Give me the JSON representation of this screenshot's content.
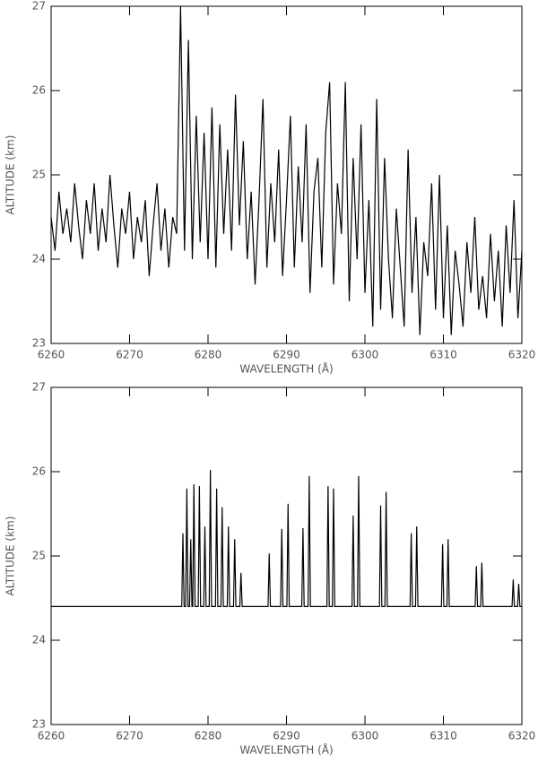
{
  "chart_data": [
    {
      "type": "line",
      "xlabel": "WAVELENGTH (Å)",
      "ylabel": "ALTITUDE (km)",
      "color": "#000000",
      "xlim": [
        6260,
        6320
      ],
      "xticks": [
        6260,
        6270,
        6280,
        6290,
        6300,
        6310,
        6320
      ],
      "ylim": [
        23,
        27
      ],
      "yticks": [
        23,
        24,
        25,
        26,
        27
      ],
      "x": [
        6260,
        6260.5,
        6261,
        6261.5,
        6262,
        6262.5,
        6263,
        6263.5,
        6264,
        6264.5,
        6265,
        6265.5,
        6266,
        6266.5,
        6267,
        6267.5,
        6268,
        6268.5,
        6269,
        6269.5,
        6270,
        6270.5,
        6271,
        6271.5,
        6272,
        6272.5,
        6273,
        6273.5,
        6274,
        6274.5,
        6275,
        6275.5,
        6276,
        6276.5,
        6277,
        6277.5,
        6278,
        6278.5,
        6279,
        6279.5,
        6280,
        6280.5,
        6281,
        6281.5,
        6282,
        6282.5,
        6283,
        6283.5,
        6284,
        6284.5,
        6285,
        6285.5,
        6286,
        6286.5,
        6287,
        6287.5,
        6288,
        6288.5,
        6289,
        6289.5,
        6290,
        6290.5,
        6291,
        6291.5,
        6292,
        6292.5,
        6293,
        6293.5,
        6294,
        6294.5,
        6295,
        6295.5,
        6296,
        6296.5,
        6297,
        6297.5,
        6298,
        6298.5,
        6299,
        6299.5,
        6300,
        6300.5,
        6301,
        6301.5,
        6302,
        6302.5,
        6303,
        6303.5,
        6304,
        6304.5,
        6305,
        6305.5,
        6306,
        6306.5,
        6307,
        6307.5,
        6308,
        6308.5,
        6309,
        6309.5,
        6310,
        6310.5,
        6311,
        6311.5,
        6312,
        6312.5,
        6313,
        6313.5,
        6314,
        6314.5,
        6315,
        6315.5,
        6316,
        6316.5,
        6317,
        6317.5,
        6318,
        6318.5,
        6319,
        6319.5,
        6320
      ],
      "values": [
        24.5,
        24.1,
        24.8,
        24.3,
        24.6,
        24.2,
        24.9,
        24.4,
        24.0,
        24.7,
        24.3,
        24.9,
        24.1,
        24.6,
        24.2,
        25.0,
        24.4,
        23.9,
        24.6,
        24.3,
        24.8,
        24.0,
        24.5,
        24.2,
        24.7,
        23.8,
        24.4,
        24.9,
        24.1,
        24.6,
        23.9,
        24.5,
        24.3,
        27.0,
        24.1,
        26.6,
        24.0,
        25.7,
        24.2,
        25.5,
        24.0,
        25.8,
        23.9,
        25.6,
        24.3,
        25.3,
        24.1,
        25.95,
        24.4,
        25.4,
        24.0,
        24.8,
        23.7,
        24.7,
        25.9,
        23.9,
        24.9,
        24.2,
        25.3,
        23.8,
        24.7,
        25.7,
        23.9,
        25.1,
        24.2,
        25.6,
        23.6,
        24.8,
        25.2,
        23.9,
        25.5,
        26.1,
        23.7,
        24.9,
        24.3,
        26.1,
        23.5,
        25.2,
        24.0,
        25.6,
        23.6,
        24.7,
        23.2,
        25.9,
        23.4,
        25.2,
        24.0,
        23.3,
        24.6,
        23.9,
        23.2,
        25.3,
        23.6,
        24.5,
        23.1,
        24.2,
        23.8,
        24.9,
        23.4,
        25.0,
        23.3,
        24.4,
        23.1,
        24.1,
        23.7,
        23.2,
        24.2,
        23.6,
        24.5,
        23.4,
        23.8,
        23.3,
        24.3,
        23.5,
        24.1,
        23.2,
        24.4,
        23.6,
        24.7,
        23.3,
        24.1
      ]
    },
    {
      "type": "line",
      "xlabel": "WAVELENGTH (Å)",
      "ylabel": "ALTITUDE (km)",
      "color": "#000000",
      "xlim": [
        6260,
        6320
      ],
      "xticks": [
        6260,
        6270,
        6280,
        6290,
        6300,
        6310,
        6320
      ],
      "ylim": [
        23,
        27
      ],
      "yticks": [
        23,
        24,
        25,
        26,
        27
      ],
      "x": [
        6260,
        6276.65,
        6276.8,
        6276.95,
        6277.15,
        6277.3,
        6277.45,
        6277.65,
        6277.8,
        6277.95,
        6278.05,
        6278.2,
        6278.35,
        6278.75,
        6278.9,
        6279.05,
        6279.45,
        6279.6,
        6279.75,
        6280.15,
        6280.3,
        6280.45,
        6280.95,
        6281.1,
        6281.25,
        6281.65,
        6281.8,
        6281.95,
        6282.45,
        6282.6,
        6282.75,
        6283.25,
        6283.4,
        6283.55,
        6284.05,
        6284.2,
        6284.35,
        6287.65,
        6287.8,
        6287.95,
        6289.25,
        6289.4,
        6289.55,
        6290.05,
        6290.2,
        6290.35,
        6291.95,
        6292.1,
        6292.25,
        6292.75,
        6292.9,
        6293.05,
        6295.15,
        6295.3,
        6295.45,
        6295.85,
        6296,
        6296.15,
        6298.35,
        6298.5,
        6298.65,
        6299.05,
        6299.2,
        6299.35,
        6301.85,
        6302,
        6302.15,
        6302.55,
        6302.7,
        6302.85,
        6305.75,
        6305.9,
        6306.05,
        6306.45,
        6306.6,
        6306.75,
        6309.75,
        6309.9,
        6310.05,
        6310.45,
        6310.6,
        6310.75,
        6314.05,
        6314.2,
        6314.35,
        6314.75,
        6314.9,
        6315.05,
        6318.75,
        6318.9,
        6319.05,
        6319.45,
        6319.6,
        6319.75,
        6320
      ],
      "values": [
        24.4,
        24.4,
        25.27,
        24.4,
        24.4,
        25.8,
        24.4,
        24.4,
        25.2,
        24.4,
        24.4,
        25.85,
        24.4,
        24.4,
        25.83,
        24.4,
        24.4,
        25.35,
        24.4,
        24.4,
        26.02,
        24.4,
        24.4,
        25.8,
        24.4,
        24.4,
        25.58,
        24.4,
        24.4,
        25.35,
        24.4,
        24.4,
        25.2,
        24.4,
        24.4,
        24.8,
        24.4,
        24.4,
        25.03,
        24.4,
        24.4,
        25.32,
        24.4,
        24.4,
        25.62,
        24.4,
        24.4,
        25.33,
        24.4,
        24.4,
        25.95,
        24.4,
        24.4,
        25.83,
        24.4,
        24.4,
        25.8,
        24.4,
        24.4,
        25.48,
        24.4,
        24.4,
        25.95,
        24.4,
        24.4,
        25.6,
        24.4,
        24.4,
        25.76,
        24.4,
        24.4,
        25.27,
        24.4,
        24.4,
        25.35,
        24.4,
        24.4,
        25.14,
        24.4,
        24.4,
        25.2,
        24.4,
        24.4,
        24.88,
        24.4,
        24.4,
        24.92,
        24.4,
        24.4,
        24.72,
        24.4,
        24.4,
        24.67,
        24.4,
        24.4
      ]
    }
  ]
}
